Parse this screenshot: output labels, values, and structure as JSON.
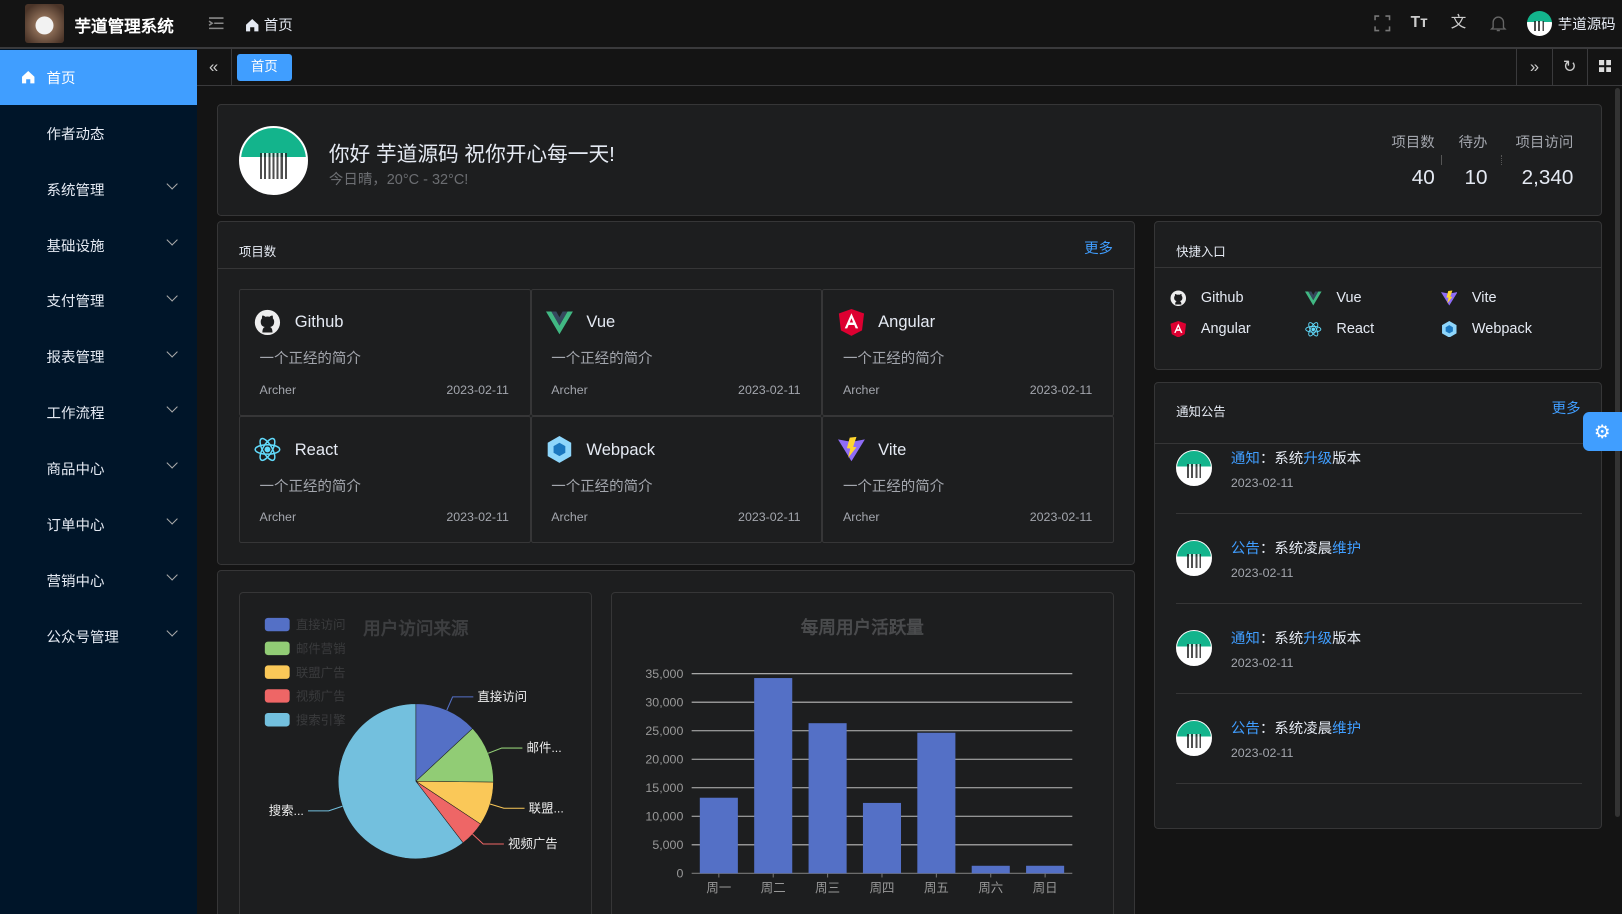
{
  "app": {
    "title": "芋道管理系统",
    "breadcrumb": "首页",
    "user": "芋道源码"
  },
  "header_icons": [
    "fullscreen-icon",
    "font-size-icon",
    "translate-icon",
    "bell-icon"
  ],
  "sidebar": {
    "items": [
      {
        "label": "首页",
        "active": true
      },
      {
        "label": "作者动态"
      },
      {
        "label": "系统管理",
        "expandable": true
      },
      {
        "label": "基础设施",
        "expandable": true
      },
      {
        "label": "支付管理",
        "expandable": true
      },
      {
        "label": "报表管理",
        "expandable": true
      },
      {
        "label": "工作流程",
        "expandable": true
      },
      {
        "label": "商品中心",
        "expandable": true
      },
      {
        "label": "订单中心",
        "expandable": true
      },
      {
        "label": "营销中心",
        "expandable": true
      },
      {
        "label": "公众号管理",
        "expandable": true
      }
    ]
  },
  "tabs": [
    {
      "label": "首页",
      "active": true
    }
  ],
  "welcome": {
    "greeting": "你好 芋道源码 祝你开心每一天!",
    "weather": "今日晴，20°C - 32°C!",
    "stats": [
      {
        "label": "项目数",
        "value": "40"
      },
      {
        "label": "待办",
        "value": "10"
      },
      {
        "label": "项目访问",
        "value": "2,340"
      }
    ]
  },
  "projects": {
    "title": "项目数",
    "more": "更多",
    "items": [
      {
        "name": "Github",
        "icon": "github-icon",
        "desc": "一个正经的简介",
        "author": "Archer",
        "date": "2023-02-11"
      },
      {
        "name": "Vue",
        "icon": "vue-icon",
        "desc": "一个正经的简介",
        "author": "Archer",
        "date": "2023-02-11"
      },
      {
        "name": "Angular",
        "icon": "angular-icon",
        "desc": "一个正经的简介",
        "author": "Archer",
        "date": "2023-02-11"
      },
      {
        "name": "React",
        "icon": "react-icon",
        "desc": "一个正经的简介",
        "author": "Archer",
        "date": "2023-02-11"
      },
      {
        "name": "Webpack",
        "icon": "webpack-icon",
        "desc": "一个正经的简介",
        "author": "Archer",
        "date": "2023-02-11"
      },
      {
        "name": "Vite",
        "icon": "vite-icon",
        "desc": "一个正经的简介",
        "author": "Archer",
        "date": "2023-02-11"
      }
    ]
  },
  "shortcuts": {
    "title": "快捷入口",
    "items": [
      {
        "name": "Github",
        "icon": "github-icon"
      },
      {
        "name": "Vue",
        "icon": "vue-icon"
      },
      {
        "name": "Vite",
        "icon": "vite-icon"
      },
      {
        "name": "Angular",
        "icon": "angular-icon"
      },
      {
        "name": "React",
        "icon": "react-icon"
      },
      {
        "name": "Webpack",
        "icon": "webpack-icon"
      }
    ]
  },
  "notices": {
    "title": "通知公告",
    "more": "更多",
    "items": [
      {
        "type": "通知",
        "sep": "：",
        "pre": "系统",
        "hl": "升级",
        "post": "版本",
        "date": "2023-02-11"
      },
      {
        "type": "公告",
        "sep": "：",
        "pre": "系统凌晨",
        "hl": "维护",
        "post": "",
        "date": "2023-02-11"
      },
      {
        "type": "通知",
        "sep": "：",
        "pre": "系统",
        "hl": "升级",
        "post": "版本",
        "date": "2023-02-11"
      },
      {
        "type": "公告",
        "sep": "：",
        "pre": "系统凌晨",
        "hl": "维护",
        "post": "",
        "date": "2023-02-11"
      }
    ]
  },
  "colors": {
    "accent": "#409eff",
    "sidebar": "#001529"
  },
  "chart_data": [
    {
      "type": "pie",
      "title": "用户访问来源",
      "legend_position": "top-left",
      "categories": [
        "直接访问",
        "邮件营销",
        "联盟广告",
        "视频广告",
        "搜索引擎"
      ],
      "labels": [
        "直接访问",
        "邮件...",
        "联盟...",
        "视频广告",
        "搜索..."
      ],
      "values": [
        335,
        310,
        234,
        135,
        1548
      ],
      "colors": [
        "#5470c6",
        "#91cc75",
        "#fac858",
        "#ee6666",
        "#73c0de"
      ]
    },
    {
      "type": "bar",
      "title": "每周用户活跃量",
      "categories": [
        "周一",
        "周二",
        "周三",
        "周四",
        "周五",
        "周六",
        "周日"
      ],
      "values": [
        13253,
        34235,
        26321,
        12340,
        24643,
        1322,
        1324
      ],
      "ylim": [
        0,
        35000
      ],
      "yticks": [
        "0",
        "5,000",
        "10,000",
        "15,000",
        "20,000",
        "25,000",
        "30,000",
        "35,000"
      ],
      "grid": true,
      "color": "#5470c6"
    }
  ]
}
